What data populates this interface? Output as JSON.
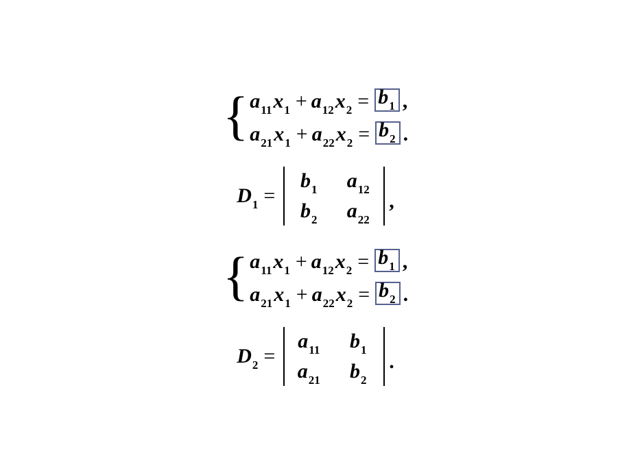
{
  "colors": {
    "text": "#000000",
    "box_border": "#56608f",
    "background": "#ffffff"
  },
  "typography": {
    "family": "Times New Roman",
    "base_size_pt": 30,
    "subscript_size_pt": 17,
    "style": "italic-bold"
  },
  "sys1": {
    "line1": {
      "a1": "a",
      "a1_sub": "11",
      "x1": "x",
      "x1_sub": "1",
      "op1": "+",
      "a2": "a",
      "a2_sub": "12",
      "x2": "x",
      "x2_sub": "2",
      "eq": "=",
      "b": "b",
      "b_sub": "1",
      "trail": ","
    },
    "line2": {
      "a1": "a",
      "a1_sub": "21",
      "x1": "x",
      "x1_sub": "1",
      "op1": "+",
      "a2": "a",
      "a2_sub": "22",
      "x2": "x",
      "x2_sub": "2",
      "eq": "=",
      "b": "b",
      "b_sub": "2",
      "trail": "."
    }
  },
  "det1": {
    "lhs_D": "D",
    "lhs_sub": "1",
    "eq": "=",
    "r1c1": "b",
    "r1c1_sub": "1",
    "r1c2": "a",
    "r1c2_sub": "12",
    "r2c1": "b",
    "r2c1_sub": "2",
    "r2c2": "a",
    "r2c2_sub": "22",
    "trail": ","
  },
  "sys2": {
    "line1": {
      "a1": "a",
      "a1_sub": "11",
      "x1": "x",
      "x1_sub": "1",
      "op1": "+",
      "a2": "a",
      "a2_sub": "12",
      "x2": "x",
      "x2_sub": "2",
      "eq": "=",
      "b": "b",
      "b_sub": "1",
      "trail": ","
    },
    "line2": {
      "a1": "a",
      "a1_sub": "21",
      "x1": "x",
      "x1_sub": "1",
      "op1": "+",
      "a2": "a",
      "a2_sub": "22",
      "x2": "x",
      "x2_sub": "2",
      "eq": "=",
      "b": "b",
      "b_sub": "2",
      "trail": "."
    }
  },
  "det2": {
    "lhs_D": "D",
    "lhs_sub": "2",
    "eq": "=",
    "r1c1": "a",
    "r1c1_sub": "11",
    "r1c2": "b",
    "r1c2_sub": "1",
    "r2c1": "a",
    "r2c1_sub": "21",
    "r2c2": "b",
    "r2c2_sub": "2",
    "trail": "."
  }
}
